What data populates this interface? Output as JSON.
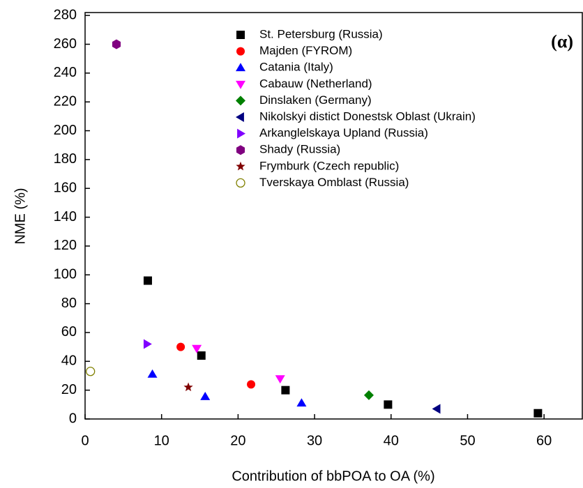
{
  "chart_data": {
    "type": "scatter",
    "xlabel": "Contribution of bbPOA to OA (%)",
    "ylabel": "NME (%)",
    "annotation": "(α)",
    "xlim": [
      0,
      65
    ],
    "ylim": [
      0,
      282
    ],
    "xticks": [
      0,
      10,
      20,
      30,
      40,
      50,
      60
    ],
    "yticks": [
      0,
      20,
      40,
      60,
      80,
      100,
      120,
      140,
      160,
      180,
      200,
      220,
      240,
      260,
      280
    ],
    "series": [
      {
        "name": "St. Petersburg (Russia)",
        "color": "#000000",
        "marker": "square",
        "x": [
          8.2,
          15.2,
          26.2,
          39.6,
          59.2
        ],
        "values": [
          96,
          44,
          20,
          10,
          4
        ]
      },
      {
        "name": "Majden (FYROM)",
        "color": "#ff0000",
        "marker": "circle",
        "x": [
          12.5,
          21.7
        ],
        "values": [
          50,
          24
        ]
      },
      {
        "name": "Catania (Italy)",
        "color": "#0000ff",
        "marker": "triangle-up",
        "x": [
          8.8,
          15.7,
          28.3
        ],
        "values": [
          31,
          15.5,
          11
        ]
      },
      {
        "name": "Cabauw (Netherland)",
        "color": "#ff00ff",
        "marker": "triangle-down",
        "x": [
          14.6,
          25.5
        ],
        "values": [
          49,
          28
        ]
      },
      {
        "name": "Dinslaken (Germany)",
        "color": "#008000",
        "marker": "diamond",
        "x": [
          37.1
        ],
        "values": [
          16.5
        ]
      },
      {
        "name": "Nikolskyi distict Donestsk Oblast (Ukrain)",
        "color": "#000080",
        "marker": "triangle-left",
        "x": [
          46
        ],
        "values": [
          7
        ]
      },
      {
        "name": "Arkanglelskaya Upland (Russia)",
        "color": "#8000ff",
        "marker": "triangle-right",
        "x": [
          8.1
        ],
        "values": [
          52
        ]
      },
      {
        "name": "Shady (Russia)",
        "color": "#800080",
        "marker": "hexagon",
        "x": [
          4.1
        ],
        "values": [
          260
        ]
      },
      {
        "name": "Frymburk (Czech republic)",
        "color": "#800000",
        "marker": "star",
        "x": [
          13.5
        ],
        "values": [
          22
        ]
      },
      {
        "name": "Tverskaya Omblast (Russia)",
        "color": "#808000",
        "marker": "open-circle",
        "x": [
          0.7
        ],
        "values": [
          33
        ]
      }
    ]
  }
}
